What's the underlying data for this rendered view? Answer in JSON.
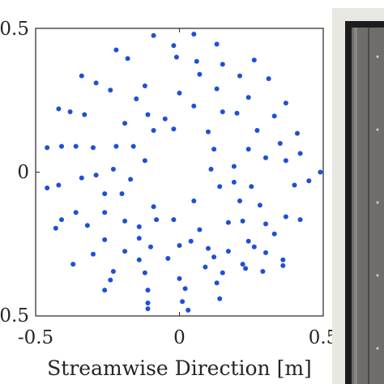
{
  "chart_data": {
    "type": "scatter",
    "title": "",
    "xlabel": "Streamwise Direction [m]",
    "ylabel": "",
    "xlim": [
      -0.5,
      0.5
    ],
    "ylim": [
      -0.5,
      0.5
    ],
    "xticks": [
      "-0.5",
      "0",
      "0.5"
    ],
    "yticks": [
      "0.5",
      "0",
      "0.5"
    ],
    "grid": false,
    "legend": "none",
    "marker_color": "#1f4fd6",
    "series": [
      {
        "values": [
          [
            -0.09,
            0.475
          ],
          [
            0.05,
            0.48
          ],
          [
            -0.02,
            0.44
          ],
          [
            0.13,
            0.445
          ],
          [
            -0.22,
            0.425
          ],
          [
            -0.18,
            0.395
          ],
          [
            -0.01,
            0.4
          ],
          [
            0.06,
            0.385
          ],
          [
            0.15,
            0.375
          ],
          [
            0.26,
            0.39
          ],
          [
            -0.34,
            0.335
          ],
          [
            -0.29,
            0.31
          ],
          [
            0.07,
            0.34
          ],
          [
            0.21,
            0.335
          ],
          [
            0.31,
            0.325
          ],
          [
            -0.24,
            0.285
          ],
          [
            -0.12,
            0.3
          ],
          [
            0.0,
            0.275
          ],
          [
            0.13,
            0.29
          ],
          [
            -0.15,
            0.255
          ],
          [
            0.05,
            0.23
          ],
          [
            0.24,
            0.26
          ],
          [
            -0.42,
            0.22
          ],
          [
            -0.38,
            0.21
          ],
          [
            -0.33,
            0.2
          ],
          [
            -0.11,
            0.2
          ],
          [
            -0.05,
            0.185
          ],
          [
            0.15,
            0.21
          ],
          [
            0.2,
            0.205
          ],
          [
            0.37,
            0.24
          ],
          [
            -0.19,
            0.17
          ],
          [
            0.33,
            0.195
          ],
          [
            -0.09,
            0.145
          ],
          [
            -0.02,
            0.15
          ],
          [
            0.1,
            0.14
          ],
          [
            0.27,
            0.145
          ],
          [
            0.41,
            0.135
          ],
          [
            -0.46,
            0.085
          ],
          [
            -0.41,
            0.09
          ],
          [
            -0.36,
            0.09
          ],
          [
            -0.3,
            0.085
          ],
          [
            -0.22,
            0.09
          ],
          [
            -0.16,
            0.09
          ],
          [
            0.12,
            0.08
          ],
          [
            0.24,
            0.08
          ],
          [
            0.35,
            0.1
          ],
          [
            0.42,
            0.065
          ],
          [
            -0.12,
            0.04
          ],
          [
            0.19,
            0.02
          ],
          [
            -0.23,
            0.01
          ],
          [
            0.11,
            0.01
          ],
          [
            0.3,
            0.05
          ],
          [
            0.37,
            0.04
          ],
          [
            0.49,
            0.0
          ],
          [
            -0.34,
            -0.02
          ],
          [
            -0.29,
            -0.01
          ],
          [
            -0.17,
            -0.025
          ],
          [
            0.19,
            -0.035
          ],
          [
            0.45,
            -0.03
          ],
          [
            -0.46,
            -0.055
          ],
          [
            -0.42,
            -0.045
          ],
          [
            -0.26,
            -0.075
          ],
          [
            -0.2,
            -0.075
          ],
          [
            0.14,
            -0.05
          ],
          [
            0.25,
            -0.05
          ],
          [
            0.4,
            -0.045
          ],
          [
            -0.09,
            -0.12
          ],
          [
            0.05,
            -0.1
          ],
          [
            0.21,
            -0.1
          ],
          [
            0.28,
            -0.115
          ],
          [
            -0.36,
            -0.14
          ],
          [
            -0.26,
            -0.14
          ],
          [
            -0.41,
            -0.165
          ],
          [
            -0.19,
            -0.17
          ],
          [
            -0.08,
            -0.165
          ],
          [
            -0.02,
            -0.165
          ],
          [
            0.17,
            -0.175
          ],
          [
            0.22,
            -0.17
          ],
          [
            0.37,
            -0.155
          ],
          [
            0.42,
            -0.165
          ],
          [
            -0.43,
            -0.195
          ],
          [
            -0.32,
            -0.185
          ],
          [
            -0.14,
            -0.19
          ],
          [
            0.07,
            -0.2
          ],
          [
            0.3,
            -0.18
          ],
          [
            0.33,
            -0.215
          ],
          [
            -0.26,
            -0.235
          ],
          [
            -0.14,
            -0.23
          ],
          [
            0.04,
            -0.24
          ],
          [
            -0.1,
            -0.26
          ],
          [
            0.1,
            -0.265
          ],
          [
            0.24,
            -0.24
          ],
          [
            -0.19,
            -0.275
          ],
          [
            0.0,
            -0.255
          ],
          [
            0.17,
            -0.275
          ],
          [
            0.26,
            -0.26
          ],
          [
            -0.37,
            -0.32
          ],
          [
            -0.3,
            -0.285
          ],
          [
            -0.14,
            -0.305
          ],
          [
            -0.04,
            -0.3
          ],
          [
            0.12,
            -0.295
          ],
          [
            0.22,
            -0.32
          ],
          [
            0.3,
            -0.28
          ],
          [
            0.36,
            -0.305
          ],
          [
            0.36,
            -0.325
          ],
          [
            -0.23,
            -0.345
          ],
          [
            -0.12,
            -0.35
          ],
          [
            0.09,
            -0.33
          ],
          [
            0.15,
            -0.35
          ],
          [
            0.23,
            -0.335
          ],
          [
            0.29,
            -0.345
          ],
          [
            -0.24,
            -0.375
          ],
          [
            0.0,
            -0.37
          ],
          [
            0.13,
            -0.385
          ],
          [
            -0.26,
            -0.41
          ],
          [
            -0.11,
            -0.41
          ],
          [
            0.02,
            -0.405
          ],
          [
            -0.11,
            -0.455
          ],
          [
            0.01,
            -0.45
          ],
          [
            0.14,
            -0.44
          ],
          [
            -0.11,
            -0.475
          ],
          [
            0.03,
            -0.48
          ]
        ]
      }
    ]
  },
  "photo_panel": {
    "frame_color": "#1c1c1c",
    "metal_color": "#6e6d6a",
    "background_color": "#e9e7e2"
  }
}
